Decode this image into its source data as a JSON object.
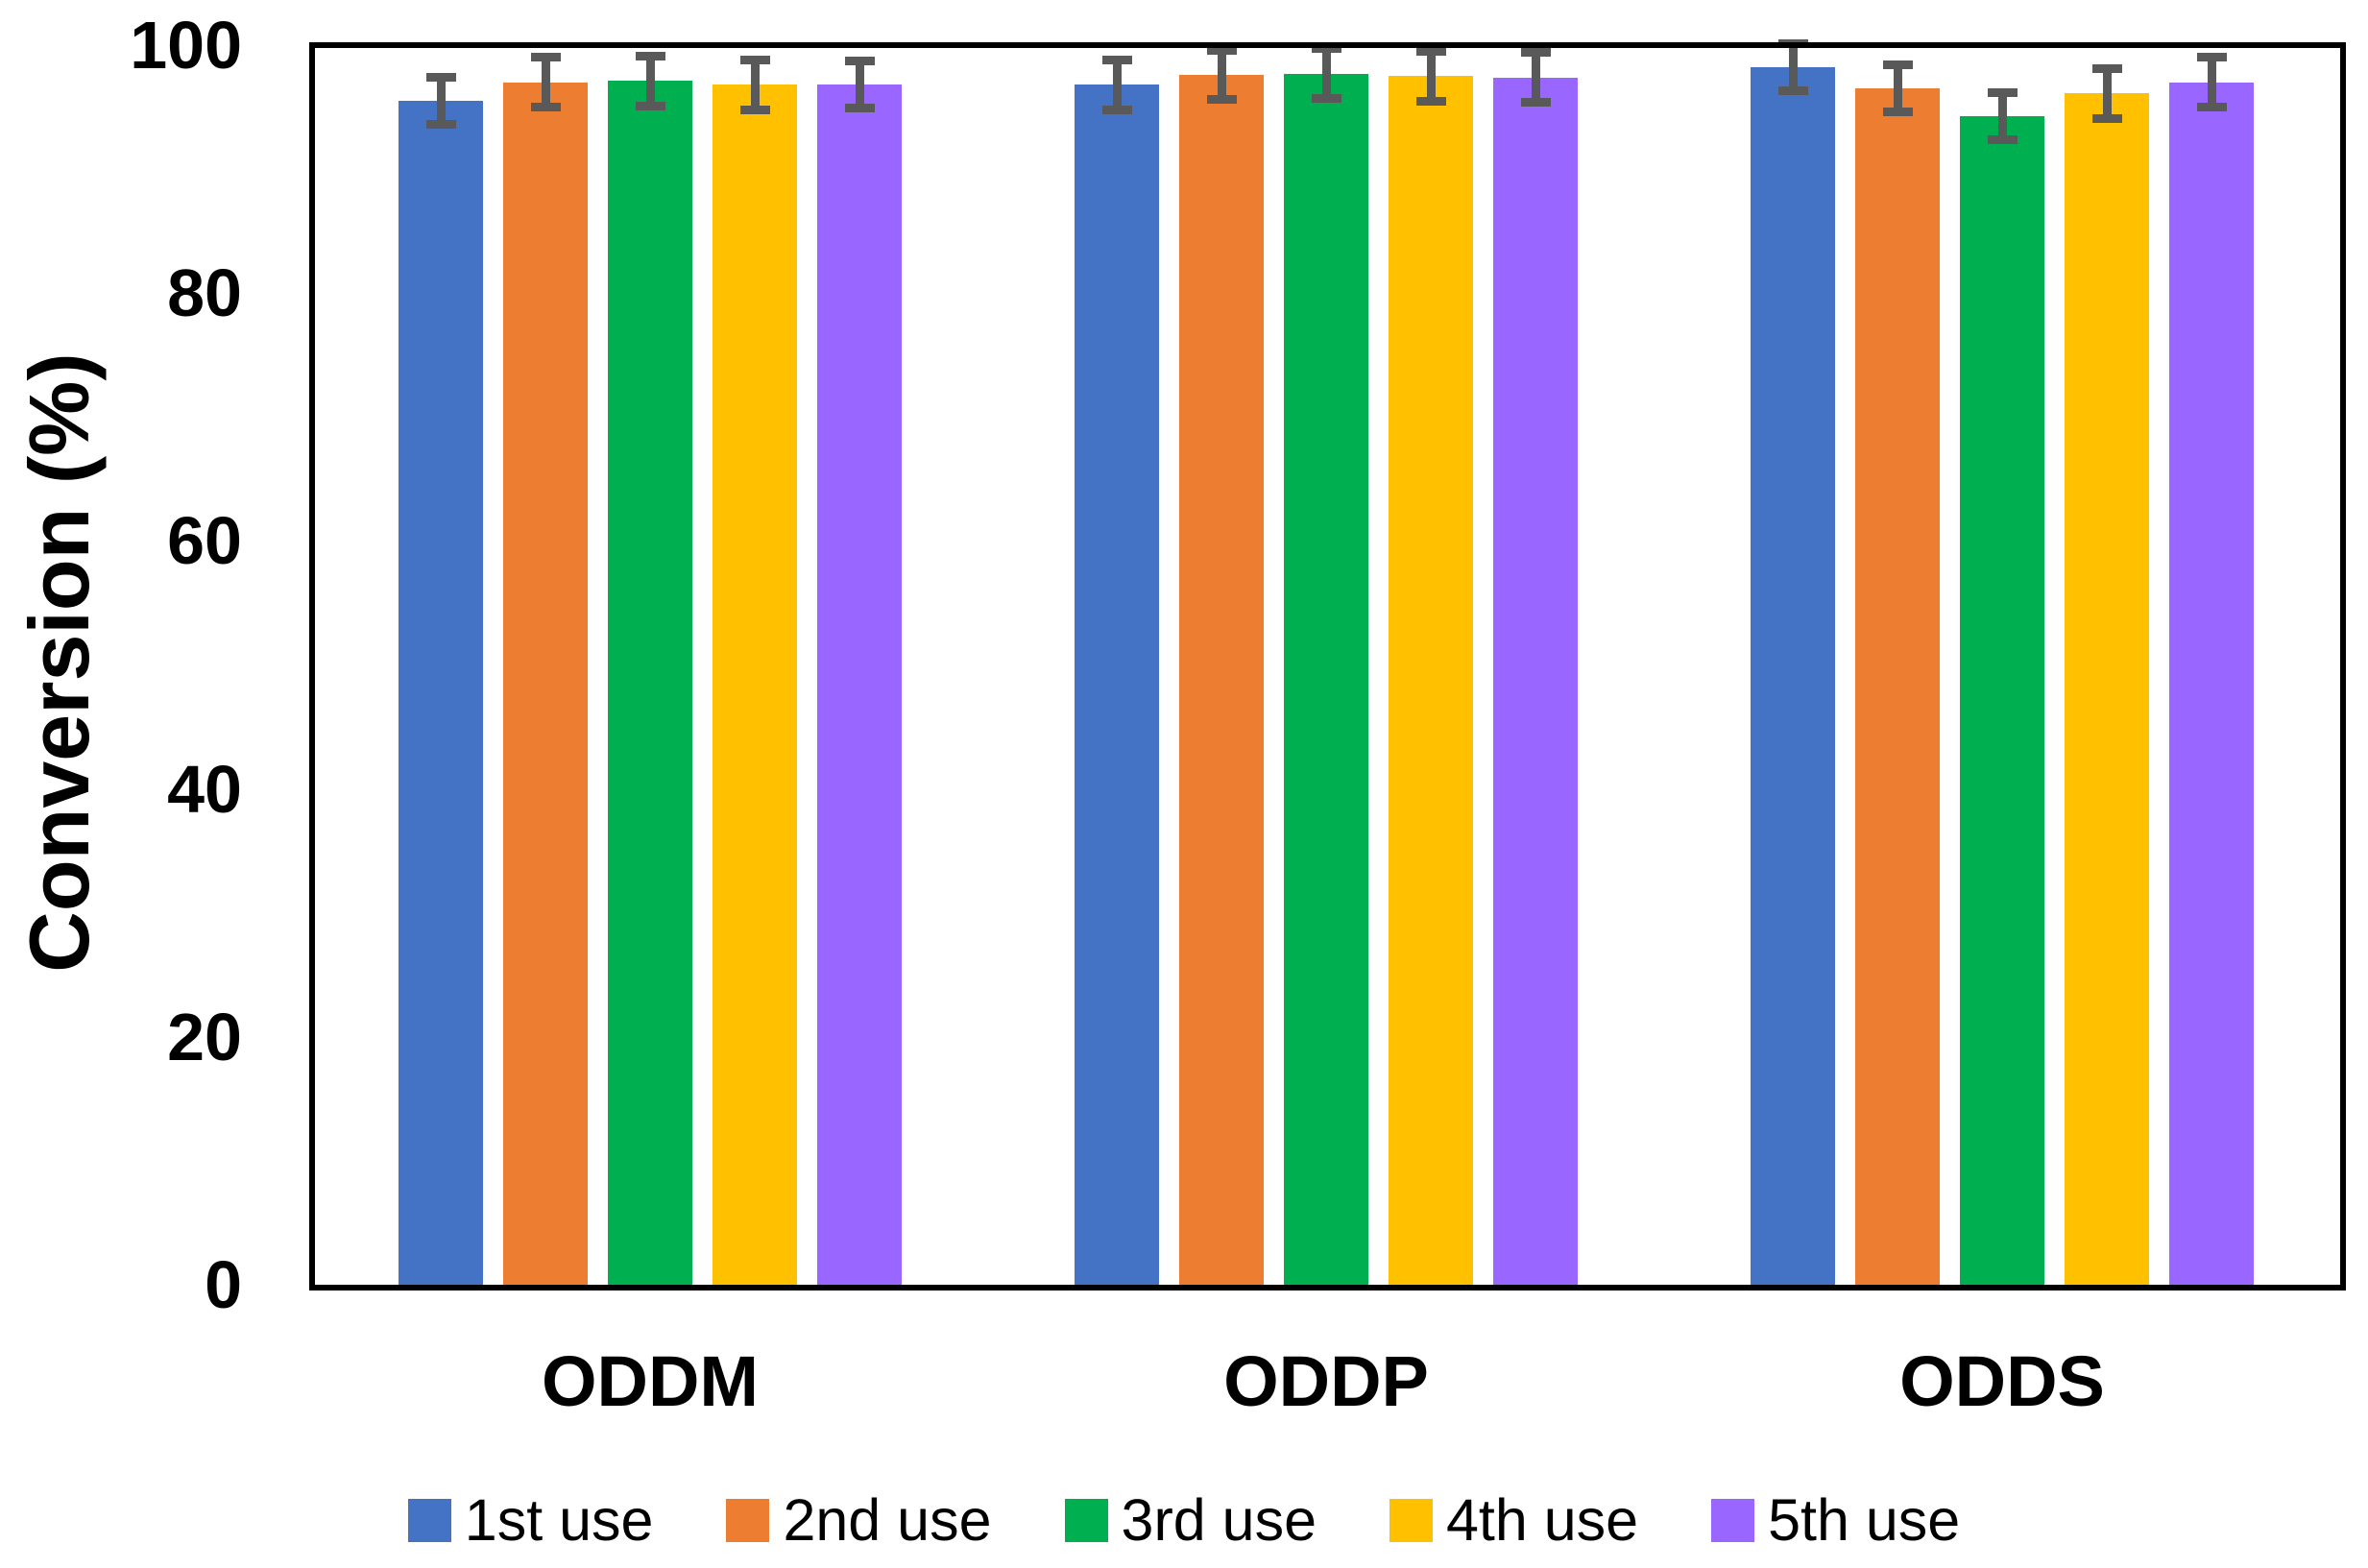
{
  "chart_data": {
    "type": "bar",
    "title": "",
    "xlabel": "",
    "ylabel": "Conversion (%)",
    "ylim": [
      0,
      100
    ],
    "yticks": [
      0,
      20,
      40,
      60,
      80,
      100
    ],
    "grid": false,
    "legend_position": "bottom",
    "categories": [
      "ODDM",
      "ODDP",
      "ODDS"
    ],
    "series": [
      {
        "name": "1st use",
        "color": "#4472C4",
        "values": [
          95.5,
          96.8,
          98.2
        ],
        "errors": [
          1.9,
          2.0,
          1.9
        ]
      },
      {
        "name": "2nd use",
        "color": "#ED7D31",
        "values": [
          97.0,
          97.6,
          96.5
        ],
        "errors": [
          2.0,
          2.0,
          1.9
        ]
      },
      {
        "name": "3rd use",
        "color": "#00B050",
        "values": [
          97.1,
          97.7,
          94.3
        ],
        "errors": [
          2.0,
          2.0,
          1.9
        ]
      },
      {
        "name": "4th use",
        "color": "#FFC000",
        "values": [
          96.8,
          97.5,
          96.1
        ],
        "errors": [
          2.0,
          2.0,
          2.0
        ]
      },
      {
        "name": "5th use",
        "color": "#9966FF",
        "values": [
          96.8,
          97.4,
          97.0
        ],
        "errors": [
          1.9,
          2.0,
          2.0
        ]
      }
    ],
    "error_bar_color": "#595959",
    "frame_color": "#000000",
    "background_color": "#FFFFFF"
  }
}
